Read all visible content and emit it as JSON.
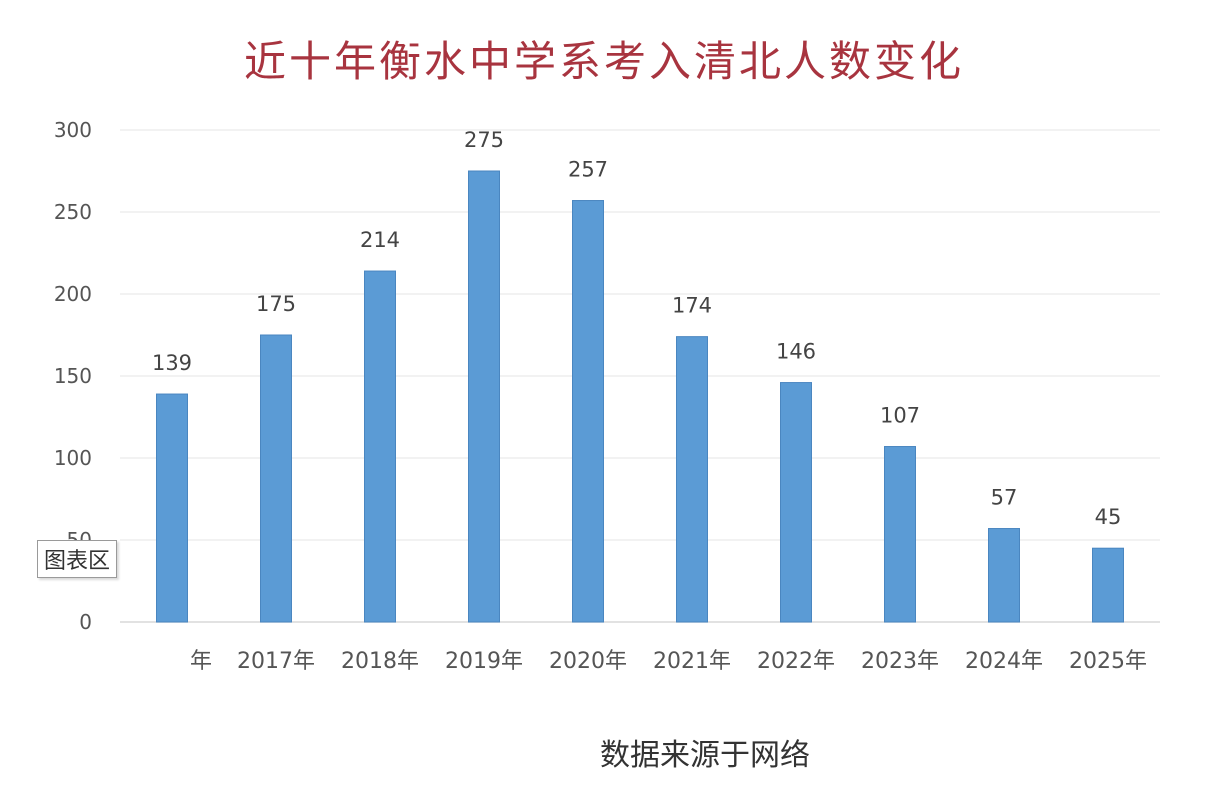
{
  "colors": {
    "bar": "#5b9bd5",
    "bar_edge": "#4a86c0",
    "title": "#a8343f",
    "grid": "#ededed",
    "axis": "#d9d9d9"
  },
  "tooltip": {
    "label": "图表区"
  },
  "footer": {
    "source": "数据来源于网络"
  },
  "chart_data": {
    "type": "bar",
    "title": "近十年衡水中学系考入清北人数变化",
    "xlabel": "",
    "ylabel": "",
    "ylim": [
      0,
      300
    ],
    "y_ticks": [
      "0",
      "50",
      "100",
      "150",
      "200",
      "250",
      "300"
    ],
    "grid": true,
    "legend": "none",
    "categories": [
      "年",
      "2017年",
      "2018年",
      "2019年",
      "2020年",
      "2021年",
      "2022年",
      "2023年",
      "2024年",
      "2025年"
    ],
    "values": [
      139,
      175,
      214,
      275,
      257,
      174,
      146,
      107,
      57,
      45
    ],
    "data_labels": [
      "139",
      "175",
      "214",
      "275",
      "257",
      "174",
      "146",
      "107",
      "57",
      "45"
    ]
  }
}
